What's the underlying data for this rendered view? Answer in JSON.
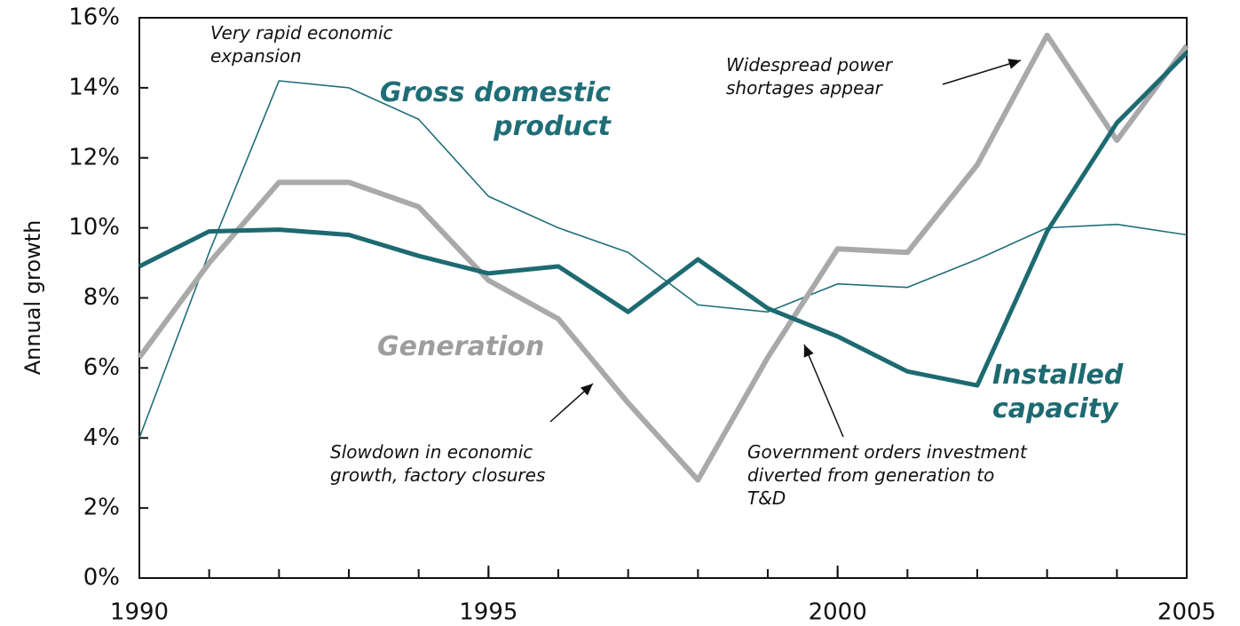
{
  "chart_data": {
    "type": "line",
    "y_label": "Annual growth",
    "x": [
      1990,
      1991,
      1992,
      1993,
      1994,
      1995,
      1996,
      1997,
      1998,
      1999,
      2000,
      2001,
      2002,
      2003,
      2004,
      2005
    ],
    "series": [
      {
        "name": "Gross domestic product",
        "color": "#1f6e77",
        "width": 1.6,
        "values": [
          4.0,
          9.3,
          14.2,
          14.0,
          13.1,
          10.9,
          10.0,
          9.3,
          7.8,
          7.6,
          8.4,
          8.3,
          9.1,
          10.0,
          10.1,
          9.8
        ]
      },
      {
        "name": "Generation",
        "color": "#a9a9a9",
        "width": 6,
        "values": [
          6.3,
          9.0,
          11.3,
          11.3,
          10.6,
          8.5,
          7.4,
          5.0,
          2.8,
          6.3,
          9.4,
          9.3,
          11.8,
          15.5,
          12.5,
          15.2
        ]
      },
      {
        "name": "Installed capacity",
        "color": "#1d6a71",
        "width": 5,
        "values": [
          8.9,
          9.9,
          9.95,
          9.8,
          9.2,
          8.7,
          8.9,
          7.6,
          9.1,
          7.7,
          6.9,
          5.9,
          5.5,
          9.9,
          13.0,
          15.0
        ]
      }
    ],
    "annotations": [
      "Very rapid economic expansion",
      "Widespread power shortages appear",
      "Slowdown in economic growth, factory closures",
      "Government orders investment diverted from generation to T&D"
    ],
    "xlim": [
      1990,
      2005
    ],
    "xticks": [
      1990,
      1995,
      2000,
      2005
    ],
    "ylim": [
      0,
      16
    ],
    "yticks": [
      {
        "value": 0,
        "label": "0%"
      },
      {
        "value": 2,
        "label": "2%"
      },
      {
        "value": 4,
        "label": "4%"
      },
      {
        "value": 6,
        "label": "6%"
      },
      {
        "value": 8,
        "label": "8%"
      },
      {
        "value": 10,
        "label": "10%"
      },
      {
        "value": 12,
        "label": "12%"
      },
      {
        "value": 14,
        "label": "14%"
      },
      {
        "value": 16,
        "label": "16%"
      }
    ],
    "grid": false
  }
}
